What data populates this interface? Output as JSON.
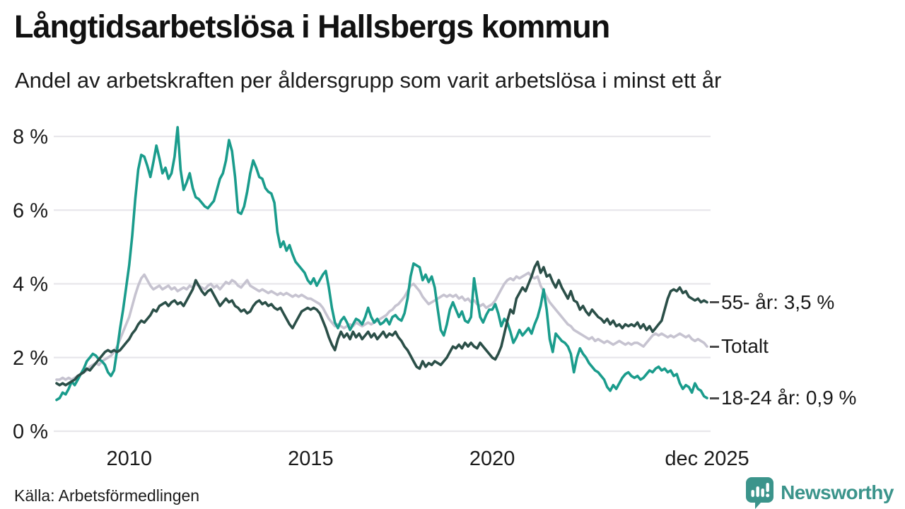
{
  "header": {
    "title": "Långtidsarbetslösa i Hallsbergs kommun",
    "subtitle": "Andel av arbetskraften per åldersgrupp som varit arbetslösa i minst ett år"
  },
  "footer": {
    "source": "Källa: Arbetsförmedlingen",
    "brand_name": "Newsworthy",
    "brand_color": "#3b948b"
  },
  "colors": {
    "grid": "#e8e7eb",
    "axis_text": "#1a1a1a",
    "legend_connector": "#4a4a4a"
  },
  "chart_data": {
    "type": "line",
    "title": "Långtidsarbetslösa i Hallsbergs kommun",
    "subtitle": "Andel av arbetskraften per åldersgrupp som varit arbetslösa i minst ett år",
    "unit": "% av arbetskraften",
    "x_start_year": 2008,
    "x_end_year": 2025.9167,
    "x_interval": "monthly",
    "grid": "horizontal",
    "legend_position": "right-of-line-ends",
    "ylim": [
      0,
      8.5
    ],
    "yticks": [
      {
        "value": 0,
        "label": "0 %"
      },
      {
        "value": 2,
        "label": "2 %"
      },
      {
        "value": 4,
        "label": "4 %"
      },
      {
        "value": 6,
        "label": "6 %"
      },
      {
        "value": 8,
        "label": "8 %"
      }
    ],
    "xticks": [
      {
        "year": 2010,
        "label": "2010"
      },
      {
        "year": 2015,
        "label": "2015"
      },
      {
        "year": 2020,
        "label": "2020"
      },
      {
        "year": 2025.9167,
        "label": "dec 2025"
      }
    ],
    "series": [
      {
        "name": "Totalt",
        "label": "Totalt",
        "color": "#c6c3d0",
        "values": [
          1.4,
          1.4,
          1.45,
          1.4,
          1.45,
          1.4,
          1.45,
          1.5,
          1.55,
          1.6,
          1.65,
          1.75,
          1.8,
          1.85,
          1.8,
          1.9,
          1.95,
          2.0,
          2.05,
          2.15,
          2.3,
          2.5,
          2.7,
          2.9,
          3.1,
          3.4,
          3.7,
          3.95,
          4.15,
          4.25,
          4.1,
          3.95,
          3.85,
          3.9,
          3.95,
          3.85,
          3.9,
          3.95,
          3.85,
          3.9,
          3.8,
          3.85,
          3.9,
          3.85,
          3.95,
          3.9,
          4.0,
          3.95,
          3.9,
          3.85,
          3.95,
          4.0,
          3.9,
          3.95,
          3.85,
          3.95,
          4.05,
          4.0,
          4.1,
          4.05,
          3.95,
          3.9,
          4.0,
          4.1,
          3.95,
          3.9,
          3.85,
          3.8,
          3.85,
          3.8,
          3.75,
          3.8,
          3.75,
          3.7,
          3.75,
          3.7,
          3.75,
          3.7,
          3.65,
          3.7,
          3.65,
          3.7,
          3.65,
          3.6,
          3.6,
          3.55,
          3.5,
          3.45,
          3.35,
          3.2,
          3.05,
          2.95,
          2.85,
          2.9,
          2.85,
          2.8,
          2.85,
          2.9,
          2.85,
          2.95,
          2.9,
          2.85,
          2.9,
          2.95,
          2.9,
          2.95,
          3.0,
          3.05,
          3.1,
          3.15,
          3.25,
          3.3,
          3.4,
          3.45,
          3.55,
          3.65,
          3.8,
          3.95,
          4.0,
          3.9,
          3.8,
          3.65,
          3.55,
          3.45,
          3.5,
          3.55,
          3.6,
          3.65,
          3.7,
          3.65,
          3.7,
          3.65,
          3.7,
          3.6,
          3.65,
          3.55,
          3.6,
          3.5,
          3.55,
          3.45,
          3.4,
          3.45,
          3.35,
          3.4,
          3.45,
          3.55,
          3.7,
          3.85,
          4.0,
          4.1,
          4.15,
          4.1,
          4.2,
          4.15,
          4.2,
          4.25,
          4.3,
          4.2,
          4.15,
          4.2,
          3.95,
          3.8,
          3.65,
          3.5,
          3.4,
          3.3,
          3.2,
          3.1,
          3.0,
          2.9,
          2.85,
          2.75,
          2.7,
          2.65,
          2.6,
          2.55,
          2.5,
          2.55,
          2.45,
          2.5,
          2.45,
          2.4,
          2.45,
          2.4,
          2.35,
          2.4,
          2.45,
          2.4,
          2.35,
          2.4,
          2.35,
          2.4,
          2.4,
          2.35,
          2.3,
          2.4,
          2.5,
          2.6,
          2.65,
          2.6,
          2.65,
          2.6,
          2.55,
          2.6,
          2.55,
          2.6,
          2.65,
          2.6,
          2.55,
          2.6,
          2.5,
          2.45,
          2.5,
          2.45,
          2.4,
          2.3
        ]
      },
      {
        "name": "18-24 år",
        "label": "18-24 år: 0,9 %",
        "end_value": "0,9 %",
        "color": "#1a9c8c",
        "values": [
          0.85,
          0.9,
          1.05,
          1.0,
          1.15,
          1.35,
          1.25,
          1.4,
          1.55,
          1.7,
          1.9,
          2.0,
          2.1,
          2.05,
          1.95,
          1.9,
          1.8,
          1.6,
          1.5,
          1.65,
          2.2,
          2.8,
          3.3,
          3.9,
          4.5,
          5.3,
          6.3,
          7.1,
          7.5,
          7.45,
          7.2,
          6.9,
          7.3,
          7.75,
          7.4,
          7.0,
          7.15,
          6.85,
          7.0,
          7.45,
          8.25,
          7.1,
          6.55,
          6.75,
          7.0,
          6.6,
          6.35,
          6.3,
          6.2,
          6.1,
          6.05,
          6.15,
          6.25,
          6.55,
          6.85,
          7.0,
          7.35,
          7.9,
          7.6,
          6.9,
          5.95,
          5.9,
          6.1,
          6.5,
          7.0,
          7.35,
          7.15,
          6.9,
          6.85,
          6.6,
          6.5,
          6.45,
          6.2,
          5.4,
          5.0,
          5.15,
          4.9,
          5.05,
          4.8,
          4.6,
          4.5,
          4.4,
          4.3,
          4.1,
          4.0,
          4.15,
          3.95,
          4.1,
          4.25,
          4.35,
          3.9,
          3.35,
          2.95,
          2.8,
          3.0,
          3.1,
          2.95,
          2.75,
          2.9,
          3.05,
          3.0,
          2.9,
          3.1,
          3.35,
          3.1,
          2.95,
          3.05,
          2.9,
          2.95,
          3.05,
          2.9,
          3.1,
          3.15,
          3.05,
          3.0,
          3.2,
          3.6,
          4.2,
          4.55,
          4.5,
          4.45,
          4.1,
          4.25,
          4.05,
          4.2,
          3.9,
          3.3,
          2.75,
          2.6,
          2.9,
          3.3,
          3.5,
          3.3,
          3.1,
          3.25,
          3.0,
          2.95,
          3.1,
          4.15,
          3.6,
          3.1,
          2.95,
          3.15,
          3.3,
          3.3,
          3.45,
          3.2,
          2.85,
          3.05,
          2.95,
          2.7,
          2.4,
          2.55,
          2.75,
          2.6,
          2.7,
          2.8,
          2.65,
          2.9,
          3.1,
          3.4,
          3.85,
          3.3,
          2.5,
          2.15,
          2.65,
          2.55,
          2.45,
          2.4,
          2.3,
          2.1,
          1.6,
          2.0,
          2.25,
          2.1,
          2.0,
          1.85,
          1.75,
          1.65,
          1.6,
          1.5,
          1.4,
          1.2,
          1.1,
          1.25,
          1.15,
          1.3,
          1.45,
          1.55,
          1.6,
          1.5,
          1.45,
          1.5,
          1.4,
          1.45,
          1.55,
          1.65,
          1.6,
          1.7,
          1.75,
          1.65,
          1.7,
          1.6,
          1.65,
          1.5,
          1.55,
          1.3,
          1.15,
          1.25,
          1.2,
          1.05,
          1.3,
          1.15,
          1.1,
          0.95,
          0.9
        ]
      },
      {
        "name": "55- år",
        "label": "55- år: 3,5 %",
        "end_value": "3,5 %",
        "color": "#2b4f48",
        "values": [
          1.3,
          1.25,
          1.3,
          1.25,
          1.3,
          1.35,
          1.4,
          1.5,
          1.55,
          1.6,
          1.7,
          1.65,
          1.75,
          1.85,
          1.95,
          2.05,
          2.15,
          2.2,
          2.15,
          2.2,
          2.15,
          2.2,
          2.3,
          2.4,
          2.5,
          2.65,
          2.75,
          2.9,
          3.0,
          2.95,
          3.05,
          3.15,
          3.3,
          3.25,
          3.4,
          3.45,
          3.5,
          3.4,
          3.5,
          3.55,
          3.45,
          3.5,
          3.4,
          3.55,
          3.7,
          3.85,
          4.1,
          3.95,
          3.8,
          3.7,
          3.8,
          3.85,
          3.7,
          3.55,
          3.4,
          3.5,
          3.6,
          3.5,
          3.55,
          3.4,
          3.35,
          3.25,
          3.3,
          3.2,
          3.25,
          3.4,
          3.5,
          3.55,
          3.45,
          3.5,
          3.4,
          3.45,
          3.35,
          3.3,
          3.35,
          3.2,
          3.05,
          2.9,
          2.8,
          2.95,
          3.1,
          3.25,
          3.3,
          3.35,
          3.3,
          3.35,
          3.3,
          3.2,
          3.0,
          2.8,
          2.55,
          2.35,
          2.2,
          2.5,
          2.7,
          2.55,
          2.65,
          2.5,
          2.7,
          2.55,
          2.65,
          2.5,
          2.6,
          2.7,
          2.55,
          2.65,
          2.5,
          2.6,
          2.7,
          2.55,
          2.65,
          2.6,
          2.7,
          2.55,
          2.45,
          2.3,
          2.2,
          2.05,
          1.9,
          1.75,
          1.7,
          1.9,
          1.75,
          1.85,
          1.8,
          1.9,
          1.85,
          1.8,
          1.9,
          2.0,
          2.15,
          2.3,
          2.25,
          2.35,
          2.25,
          2.4,
          2.3,
          2.4,
          2.3,
          2.25,
          2.4,
          2.3,
          2.2,
          2.1,
          2.0,
          1.95,
          2.1,
          2.3,
          2.65,
          3.0,
          3.3,
          3.2,
          3.6,
          3.75,
          3.9,
          3.8,
          4.0,
          4.2,
          4.45,
          4.6,
          4.3,
          4.45,
          4.2,
          4.25,
          4.05,
          3.9,
          4.1,
          3.9,
          3.75,
          3.6,
          3.8,
          3.55,
          3.5,
          3.3,
          3.4,
          3.25,
          3.15,
          3.3,
          3.2,
          3.1,
          3.05,
          2.95,
          3.05,
          2.9,
          3.0,
          2.85,
          2.9,
          2.8,
          2.9,
          2.85,
          2.9,
          2.85,
          2.95,
          2.8,
          2.9,
          2.75,
          2.85,
          2.7,
          2.8,
          2.9,
          3.0,
          3.3,
          3.6,
          3.8,
          3.85,
          3.8,
          3.9,
          3.75,
          3.8,
          3.65,
          3.6,
          3.55,
          3.6,
          3.5,
          3.55,
          3.5
        ]
      }
    ]
  }
}
